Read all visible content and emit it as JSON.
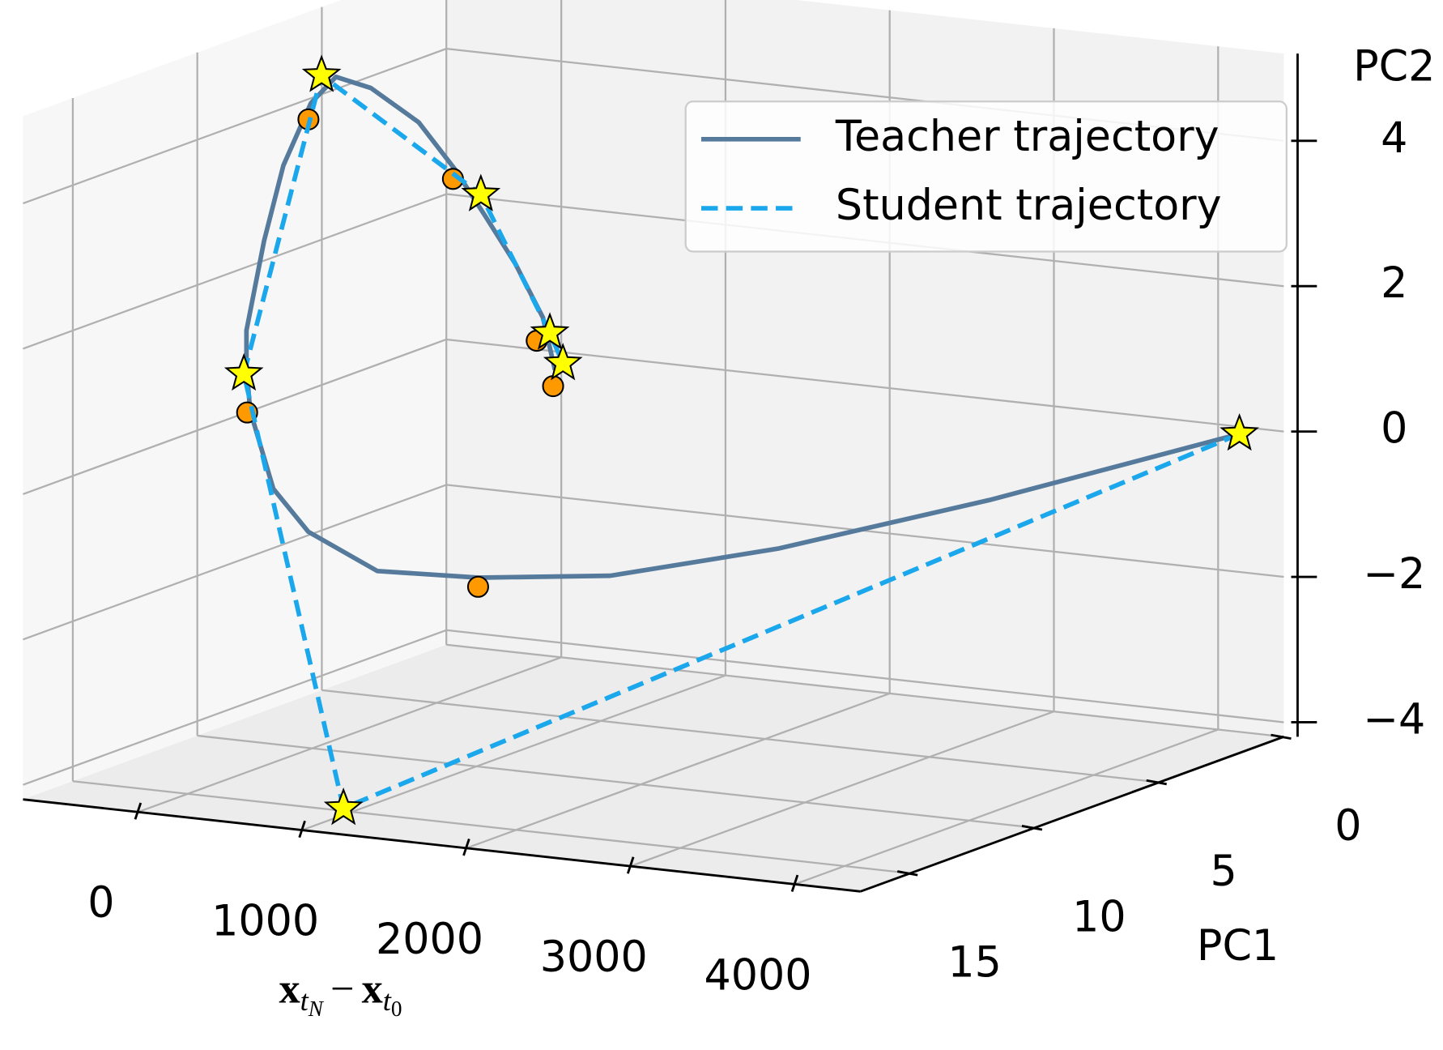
{
  "chart_data": {
    "type": "line3d",
    "xlabel": [
      "x",
      "t",
      "N",
      "−",
      "x",
      "t",
      "0"
    ],
    "ylabel": "PC1",
    "zlabel": "PC2",
    "xlim": [
      -700,
      4400
    ],
    "ylim": [
      0,
      17
    ],
    "zlim": [
      -4.2,
      5.2
    ],
    "xticks": [
      0,
      1000,
      2000,
      3000,
      4000
    ],
    "yticks": [
      0,
      5,
      10,
      15
    ],
    "zticks": [
      {
        "value": -4,
        "label": "−4"
      },
      {
        "value": -2,
        "label": "−2"
      },
      0,
      2,
      4
    ],
    "grid": true,
    "legend": "upper right",
    "series": [
      {
        "name": "Teacher trajectory",
        "color": "#557a9c",
        "linestyle": "solid",
        "x": [
          4130,
          3062,
          2228,
          1511,
          1012,
          548,
          279,
          218,
          229,
          206,
          206,
          162,
          127,
          295,
          447,
          660,
          951,
          1175,
          1360,
          1540,
          1708,
          1781
        ],
        "y": [
          0,
          3,
          6,
          8,
          10,
          11,
          12,
          13,
          14,
          14,
          14,
          13,
          12,
          12,
          12,
          12,
          12,
          12,
          12,
          12,
          12,
          12
        ],
        "z": [
          -0.1,
          -0.9,
          -1.4,
          -1.7,
          -1.6,
          -1.5,
          -0.9,
          -0.2,
          1.0,
          1.6,
          2.1,
          3.2,
          4.1,
          5.0,
          5.4,
          5.3,
          4.9,
          4.3,
          3.7,
          3.1,
          2.4,
          1.7
        ]
      },
      {
        "name": "Student trajectory",
        "color": "#1aa7ec",
        "linestyle": "dashed",
        "marker": "star",
        "marker_color": "#ffff00",
        "x": [
          4130,
          1100,
          190,
          360,
          1330,
          1750,
          1830
        ],
        "y": [
          0,
          16,
          14,
          12,
          12,
          12,
          12
        ],
        "z": [
          -0.1,
          -4.0,
          1.5,
          5.4,
          4.0,
          2.2,
          1.8
        ]
      },
      {
        "color": "#ff9900",
        "linestyle": "none",
        "marker": "circle",
        "marker_color": "#ff9900",
        "x": [
          1010,
          210,
          280,
          1160,
          1670,
          1770
        ],
        "y": [
          10,
          14,
          12,
          12,
          12,
          12
        ],
        "z": [
          -1.6,
          1.1,
          4.9,
          4.3,
          2.2,
          1.6
        ]
      }
    ]
  }
}
